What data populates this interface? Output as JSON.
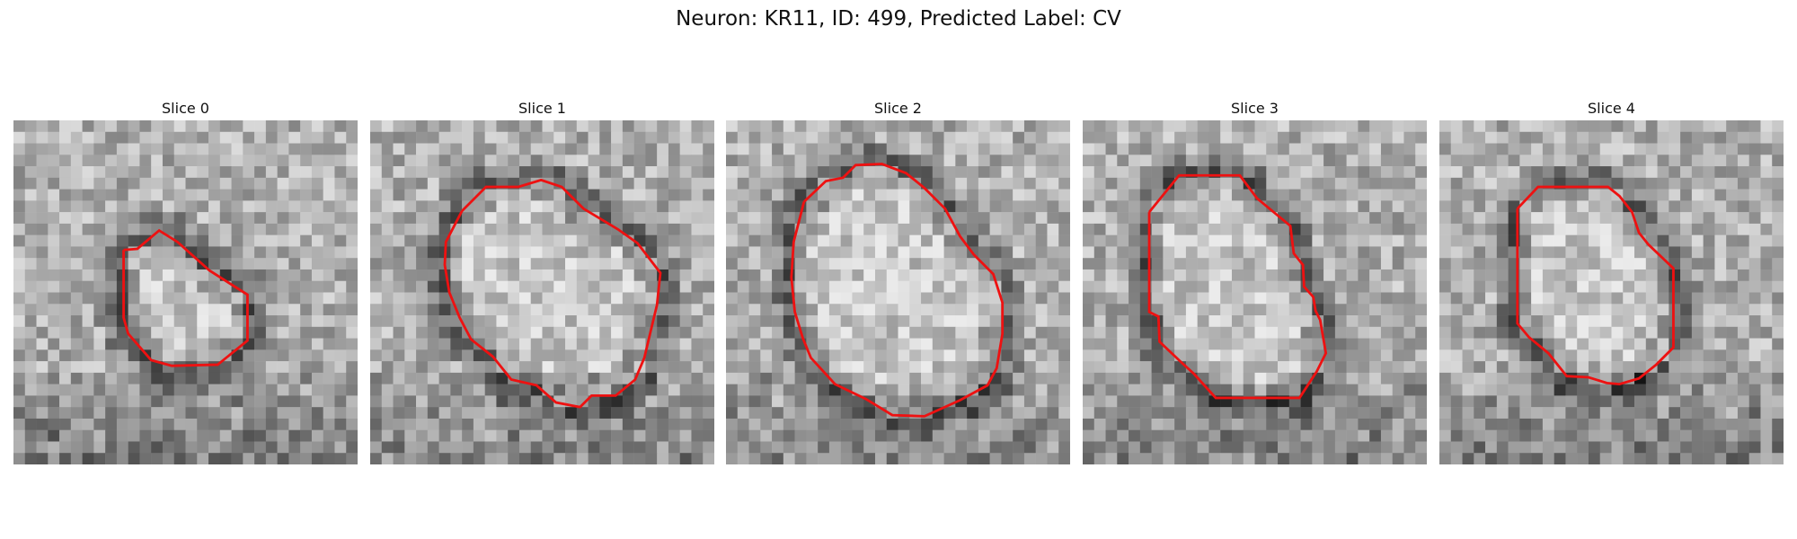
{
  "figure": {
    "title": "Neuron: KR11, ID: 499, Predicted Label: CV",
    "contour_color": "#ee1111"
  },
  "slices": [
    {
      "title": "Slice 0"
    },
    {
      "title": "Slice 1"
    },
    {
      "title": "Slice 2"
    },
    {
      "title": "Slice 3"
    },
    {
      "title": "Slice 4"
    }
  ]
}
